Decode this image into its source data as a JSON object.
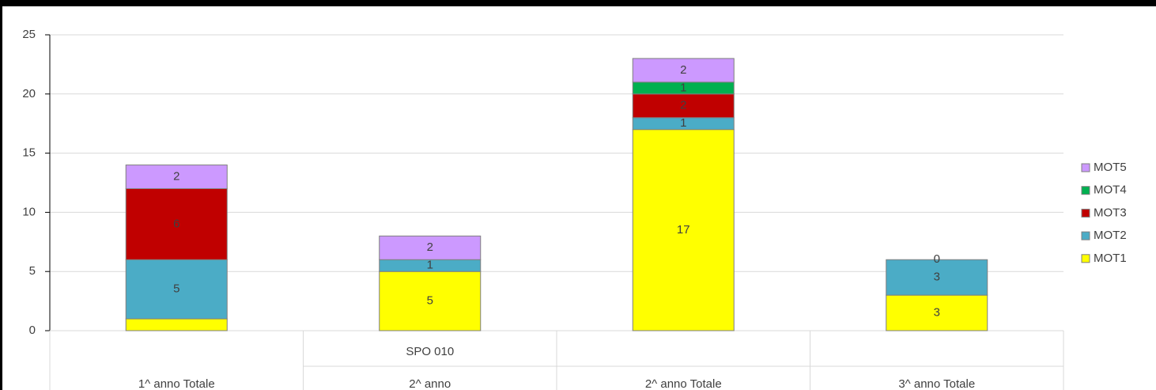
{
  "chart_data": {
    "type": "stacked_bar",
    "categories": [
      "1^ anno Totale",
      "2^ anno",
      "2^ anno Totale",
      "3^ anno Totale"
    ],
    "subcategories": [
      null,
      "SPO 010",
      null,
      null
    ],
    "series": [
      {
        "name": "MOT1",
        "color": "#ffff00",
        "values": [
          1,
          5,
          17,
          3
        ],
        "value_labels": [
          null,
          "5",
          "17",
          "3"
        ]
      },
      {
        "name": "MOT2",
        "color": "#4bacc6",
        "values": [
          5,
          1,
          1,
          3
        ]
      },
      {
        "name": "MOT3",
        "color": "#c00000",
        "values": [
          6,
          null,
          2,
          0
        ]
      },
      {
        "name": "MOT4",
        "color": "#00b050",
        "values": [
          null,
          null,
          1,
          null
        ]
      },
      {
        "name": "MOT5",
        "color": "#cc99ff",
        "values": [
          2,
          2,
          2,
          null
        ]
      }
    ],
    "ylim": [
      0,
      25
    ],
    "yticks": [
      0,
      5,
      10,
      15,
      20,
      25
    ],
    "grid": true,
    "legend": "right"
  }
}
